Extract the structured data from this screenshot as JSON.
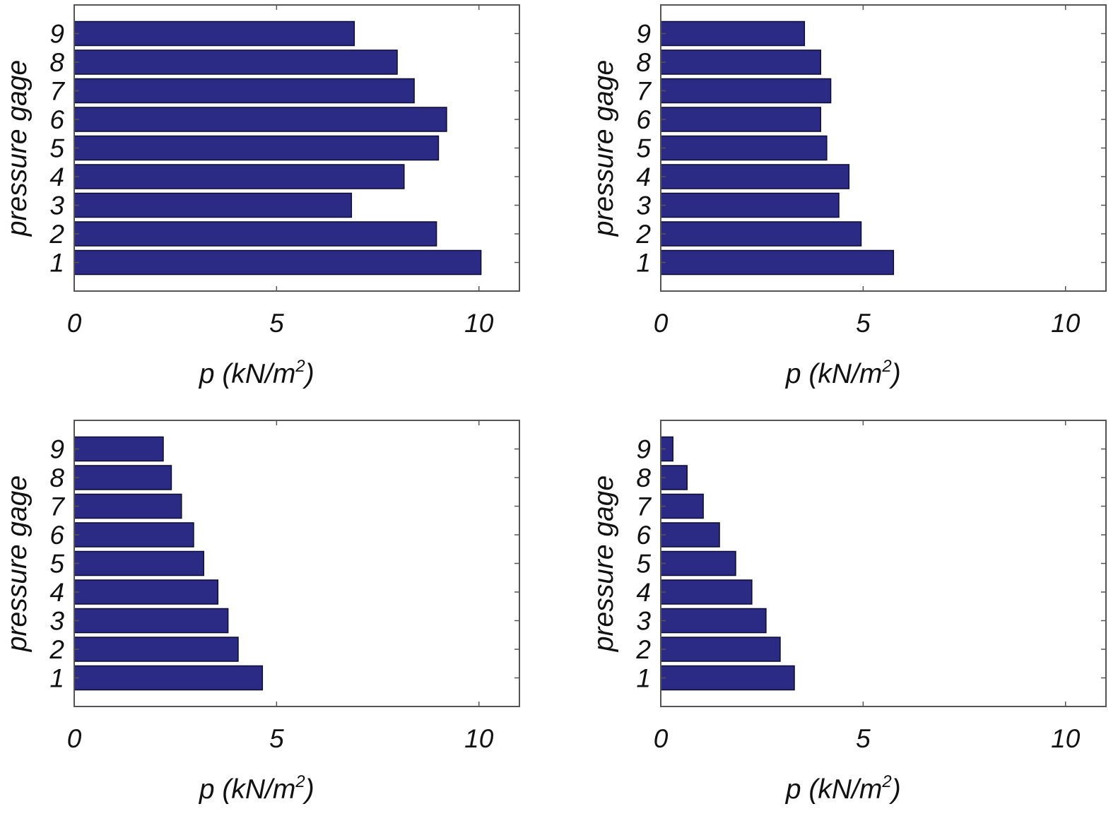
{
  "colors": {
    "bar": "#2b2b86",
    "bar_edge": "#0d0d33",
    "axes": "#555555",
    "text": "#111111"
  },
  "chart_data": [
    {
      "type": "bar",
      "orientation": "horizontal",
      "categories": [
        "1",
        "2",
        "3",
        "4",
        "5",
        "6",
        "7",
        "8",
        "9"
      ],
      "values": [
        10.05,
        8.95,
        6.85,
        8.15,
        9.0,
        9.2,
        8.4,
        7.98,
        6.92
      ],
      "xlabel": "p (kN/m2)",
      "xlabel_text": "p (kN/m",
      "xlabel_sup": "2",
      "xlabel_close": ")",
      "ylabel": "pressure gage",
      "xlim": [
        0,
        11
      ],
      "xticks": [
        "0",
        "5",
        "10"
      ],
      "grid": false
    },
    {
      "type": "bar",
      "orientation": "horizontal",
      "categories": [
        "1",
        "2",
        "3",
        "4",
        "5",
        "6",
        "7",
        "8",
        "9"
      ],
      "values": [
        5.75,
        4.95,
        4.4,
        4.65,
        4.1,
        3.95,
        4.2,
        3.95,
        3.55
      ],
      "xlabel": "p (kN/m2)",
      "xlabel_text": "p (kN/m",
      "xlabel_sup": "2",
      "xlabel_close": ")",
      "ylabel": "pressure gage",
      "xlim": [
        0,
        11
      ],
      "xticks": [
        "0",
        "5",
        "10"
      ],
      "grid": false
    },
    {
      "type": "bar",
      "orientation": "horizontal",
      "categories": [
        "1",
        "2",
        "3",
        "4",
        "5",
        "6",
        "7",
        "8",
        "9"
      ],
      "values": [
        4.65,
        4.05,
        3.8,
        3.55,
        3.2,
        2.95,
        2.65,
        2.4,
        2.2
      ],
      "xlabel": "p (kN/m2)",
      "xlabel_text": "p (kN/m",
      "xlabel_sup": "2",
      "xlabel_close": ")",
      "ylabel": "pressure gage",
      "xlim": [
        0,
        11
      ],
      "xticks": [
        "0",
        "5",
        "10"
      ],
      "grid": false
    },
    {
      "type": "bar",
      "orientation": "horizontal",
      "categories": [
        "1",
        "2",
        "3",
        "4",
        "5",
        "6",
        "7",
        "8",
        "9"
      ],
      "values": [
        3.3,
        2.95,
        2.6,
        2.25,
        1.85,
        1.45,
        1.05,
        0.65,
        0.3
      ],
      "xlabel": "p (kN/m2)",
      "xlabel_text": "p (kN/m",
      "xlabel_sup": "2",
      "xlabel_close": ")",
      "ylabel": "pressure gage",
      "xlim": [
        0,
        11
      ],
      "xticks": [
        "0",
        "5",
        "10"
      ],
      "grid": false
    }
  ]
}
